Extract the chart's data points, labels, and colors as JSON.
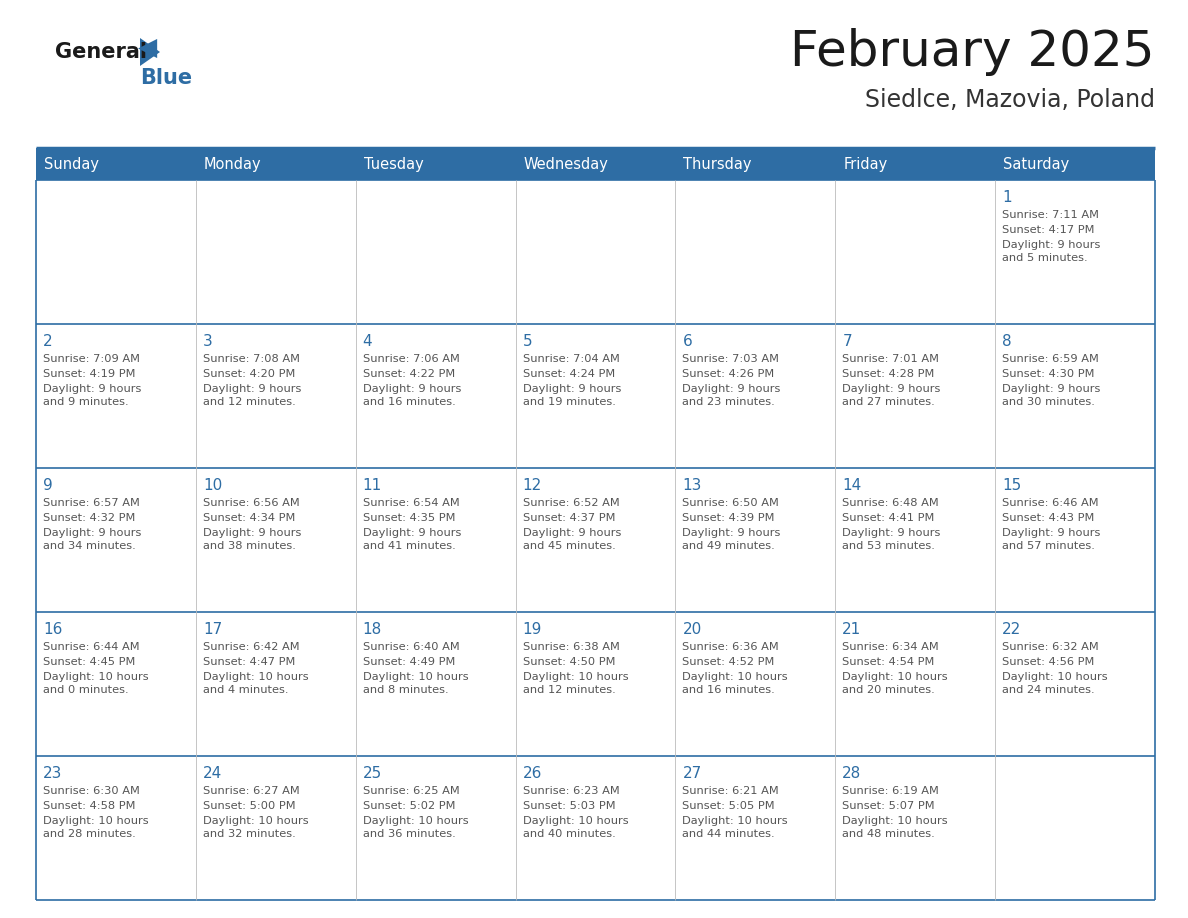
{
  "title": "February 2025",
  "subtitle": "Siedlce, Mazovia, Poland",
  "header_bg": "#2E6DA4",
  "header_text": "#FFFFFF",
  "cell_bg": "#FFFFFF",
  "day_number_color": "#2E6DA4",
  "cell_text_color": "#555555",
  "line_color": "#2E6DA4",
  "grid_color": "#BBBBBB",
  "days_of_week": [
    "Sunday",
    "Monday",
    "Tuesday",
    "Wednesday",
    "Thursday",
    "Friday",
    "Saturday"
  ],
  "weeks": [
    [
      {
        "day": null
      },
      {
        "day": null
      },
      {
        "day": null
      },
      {
        "day": null
      },
      {
        "day": null
      },
      {
        "day": null
      },
      {
        "day": 1,
        "sunrise": "7:11 AM",
        "sunset": "4:17 PM",
        "daylight": "9 hours\nand 5 minutes."
      }
    ],
    [
      {
        "day": 2,
        "sunrise": "7:09 AM",
        "sunset": "4:19 PM",
        "daylight": "9 hours\nand 9 minutes."
      },
      {
        "day": 3,
        "sunrise": "7:08 AM",
        "sunset": "4:20 PM",
        "daylight": "9 hours\nand 12 minutes."
      },
      {
        "day": 4,
        "sunrise": "7:06 AM",
        "sunset": "4:22 PM",
        "daylight": "9 hours\nand 16 minutes."
      },
      {
        "day": 5,
        "sunrise": "7:04 AM",
        "sunset": "4:24 PM",
        "daylight": "9 hours\nand 19 minutes."
      },
      {
        "day": 6,
        "sunrise": "7:03 AM",
        "sunset": "4:26 PM",
        "daylight": "9 hours\nand 23 minutes."
      },
      {
        "day": 7,
        "sunrise": "7:01 AM",
        "sunset": "4:28 PM",
        "daylight": "9 hours\nand 27 minutes."
      },
      {
        "day": 8,
        "sunrise": "6:59 AM",
        "sunset": "4:30 PM",
        "daylight": "9 hours\nand 30 minutes."
      }
    ],
    [
      {
        "day": 9,
        "sunrise": "6:57 AM",
        "sunset": "4:32 PM",
        "daylight": "9 hours\nand 34 minutes."
      },
      {
        "day": 10,
        "sunrise": "6:56 AM",
        "sunset": "4:34 PM",
        "daylight": "9 hours\nand 38 minutes."
      },
      {
        "day": 11,
        "sunrise": "6:54 AM",
        "sunset": "4:35 PM",
        "daylight": "9 hours\nand 41 minutes."
      },
      {
        "day": 12,
        "sunrise": "6:52 AM",
        "sunset": "4:37 PM",
        "daylight": "9 hours\nand 45 minutes."
      },
      {
        "day": 13,
        "sunrise": "6:50 AM",
        "sunset": "4:39 PM",
        "daylight": "9 hours\nand 49 minutes."
      },
      {
        "day": 14,
        "sunrise": "6:48 AM",
        "sunset": "4:41 PM",
        "daylight": "9 hours\nand 53 minutes."
      },
      {
        "day": 15,
        "sunrise": "6:46 AM",
        "sunset": "4:43 PM",
        "daylight": "9 hours\nand 57 minutes."
      }
    ],
    [
      {
        "day": 16,
        "sunrise": "6:44 AM",
        "sunset": "4:45 PM",
        "daylight": "10 hours\nand 0 minutes."
      },
      {
        "day": 17,
        "sunrise": "6:42 AM",
        "sunset": "4:47 PM",
        "daylight": "10 hours\nand 4 minutes."
      },
      {
        "day": 18,
        "sunrise": "6:40 AM",
        "sunset": "4:49 PM",
        "daylight": "10 hours\nand 8 minutes."
      },
      {
        "day": 19,
        "sunrise": "6:38 AM",
        "sunset": "4:50 PM",
        "daylight": "10 hours\nand 12 minutes."
      },
      {
        "day": 20,
        "sunrise": "6:36 AM",
        "sunset": "4:52 PM",
        "daylight": "10 hours\nand 16 minutes."
      },
      {
        "day": 21,
        "sunrise": "6:34 AM",
        "sunset": "4:54 PM",
        "daylight": "10 hours\nand 20 minutes."
      },
      {
        "day": 22,
        "sunrise": "6:32 AM",
        "sunset": "4:56 PM",
        "daylight": "10 hours\nand 24 minutes."
      }
    ],
    [
      {
        "day": 23,
        "sunrise": "6:30 AM",
        "sunset": "4:58 PM",
        "daylight": "10 hours\nand 28 minutes."
      },
      {
        "day": 24,
        "sunrise": "6:27 AM",
        "sunset": "5:00 PM",
        "daylight": "10 hours\nand 32 minutes."
      },
      {
        "day": 25,
        "sunrise": "6:25 AM",
        "sunset": "5:02 PM",
        "daylight": "10 hours\nand 36 minutes."
      },
      {
        "day": 26,
        "sunrise": "6:23 AM",
        "sunset": "5:03 PM",
        "daylight": "10 hours\nand 40 minutes."
      },
      {
        "day": 27,
        "sunrise": "6:21 AM",
        "sunset": "5:05 PM",
        "daylight": "10 hours\nand 44 minutes."
      },
      {
        "day": 28,
        "sunrise": "6:19 AM",
        "sunset": "5:07 PM",
        "daylight": "10 hours\nand 48 minutes."
      },
      {
        "day": null
      }
    ]
  ]
}
